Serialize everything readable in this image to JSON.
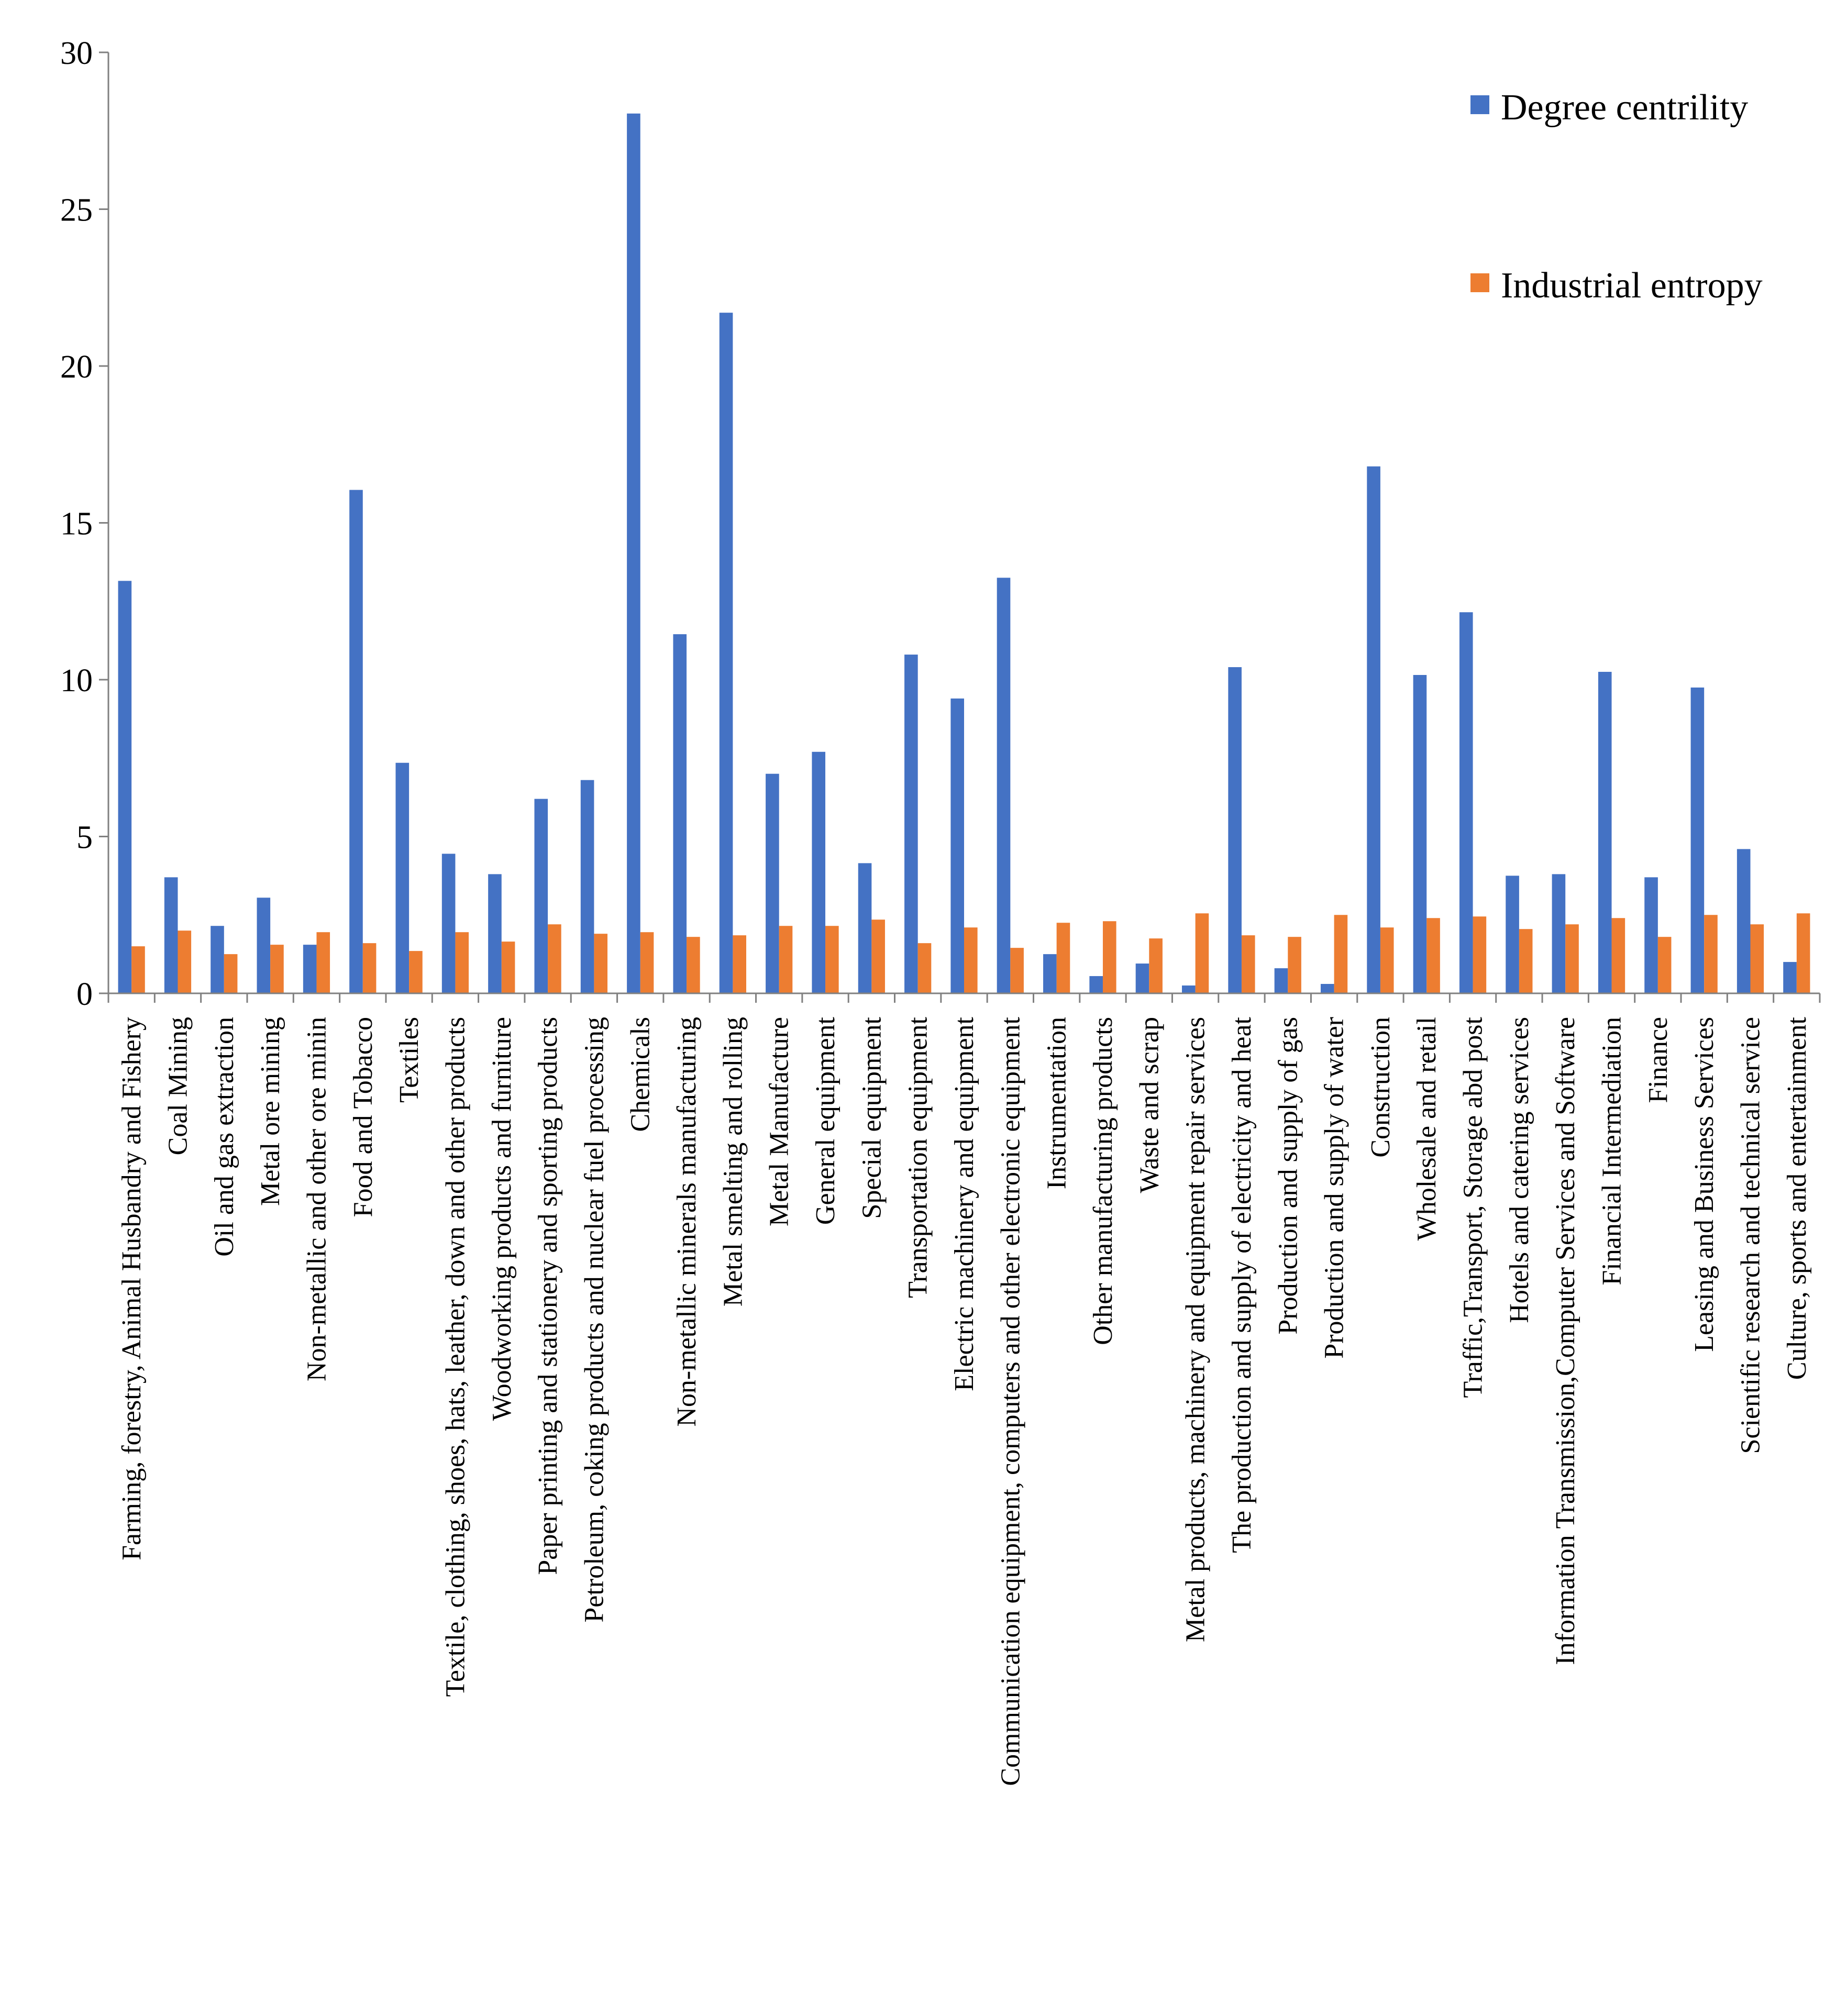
{
  "chart_data": {
    "type": "bar",
    "title": "",
    "xlabel": "",
    "ylabel": "",
    "ylim": [
      0,
      30
    ],
    "yticks": [
      0,
      5,
      10,
      15,
      20,
      25,
      30
    ],
    "grid": false,
    "legend_position": "top-right",
    "colors": {
      "Degree centrility": "#4472C4",
      "Industrial entropy": "#ED7D31"
    },
    "categories": [
      "Farming, forestry,  Animal Husbandry and Fishery",
      "Coal Mining",
      "Oil and gas extraction",
      "Metal ore mining",
      "Non-metallic and other ore minin",
      "Food and Tobacco",
      "Textiles",
      "Textile, clothing, shoes, hats, leather, down and other products",
      "Woodworking products and furniture",
      "Paper printing and stationery and sporting products",
      "Petroleum, coking products and nuclear fuel processing",
      "Chemicals",
      "Non-metallic minerals manufacturing",
      "Metal smelting and rolling",
      "Metal Manufacture",
      "General equipment",
      "Special equipment",
      "Transportation equipment",
      "Electric machinery and equipment",
      "Communication equipment, computers and other electronic equipment",
      "Instrumentation",
      "Other manufacturing products",
      "Waste and scrap",
      "Metal products, machinery and equipment repair services",
      "The production and supply of electricity and heat",
      "Production and supply of gas",
      "Production and supply of water",
      "Construction",
      "Wholesale and retail",
      "Traffic,Transport, Storage abd post",
      "Hotels and catering services",
      "Information Transmission,Computer Services and Software",
      "Financial Intermediation",
      "Finance",
      "Leasing and Business Services",
      "Scientific research and technical service",
      "Culture, sports and entertainment"
    ],
    "series": [
      {
        "name": "Degree centrility",
        "values": [
          13.15,
          3.7,
          2.15,
          3.05,
          1.55,
          16.05,
          7.35,
          4.45,
          3.8,
          6.2,
          6.8,
          28.05,
          11.45,
          21.7,
          7.0,
          7.7,
          4.15,
          10.8,
          9.4,
          13.25,
          1.25,
          0.55,
          0.95,
          0.25,
          10.4,
          0.8,
          0.3,
          16.8,
          10.15,
          12.15,
          3.75,
          3.8,
          10.25,
          3.7,
          9.75,
          4.6,
          1.0
        ]
      },
      {
        "name": "Industrial entropy",
        "values": [
          1.5,
          2.0,
          1.25,
          1.55,
          1.95,
          1.6,
          1.35,
          1.95,
          1.65,
          2.2,
          1.9,
          1.95,
          1.8,
          1.85,
          2.15,
          2.15,
          2.35,
          1.6,
          2.1,
          1.45,
          2.25,
          2.3,
          1.75,
          2.55,
          1.85,
          1.8,
          2.5,
          2.1,
          2.4,
          2.45,
          2.05,
          2.2,
          2.4,
          1.8,
          2.5,
          2.2,
          2.55
        ]
      }
    ]
  }
}
